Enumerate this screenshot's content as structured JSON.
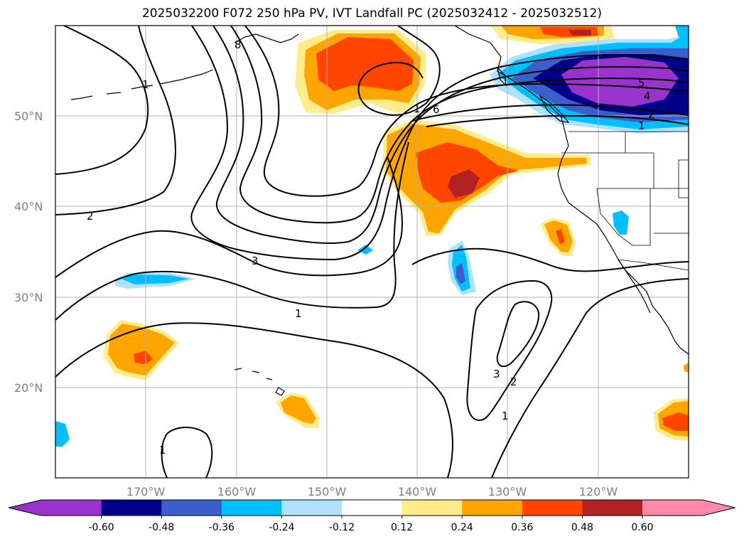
{
  "title": "2025032200 F072 250 hPa PV, IVT Landfall PC (2025032412 - 2025032512)",
  "map": {
    "lon_range": [
      -180,
      -110
    ],
    "lat_range": [
      10,
      60
    ],
    "lon_ticks": [
      "170°W",
      "160°W",
      "150°W",
      "140°W",
      "130°W",
      "120°W"
    ],
    "lat_ticks": [
      "50°N",
      "40°N",
      "30°N",
      "20°N"
    ],
    "grid": true
  },
  "contour_labels": [
    "1",
    "2",
    "3",
    "6",
    "5",
    "4",
    "2",
    "1",
    "1",
    "3",
    "2",
    "1",
    "1",
    "8"
  ],
  "colorbar": {
    "ticks": [
      "-0.60",
      "-0.48",
      "-0.36",
      "-0.24",
      "-0.12",
      "0.12",
      "0.24",
      "0.36",
      "0.48",
      "0.60"
    ],
    "colors": [
      "#9933cc",
      "#00008b",
      "#3a5fcd",
      "#00bfff",
      "#b0e2ff",
      "#ffffff",
      "#ffec8b",
      "#ffa500",
      "#ff4500",
      "#b22222",
      "#ff88aa",
      "#ffffff"
    ],
    "extend": "both"
  }
}
